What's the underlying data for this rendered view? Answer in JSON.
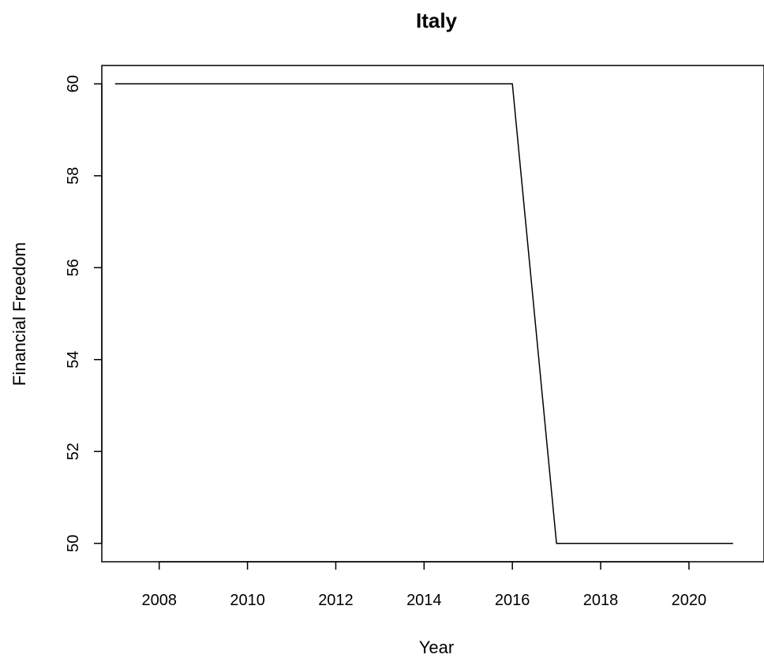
{
  "chart_data": {
    "type": "line",
    "title": "Italy",
    "xlabel": "Year",
    "ylabel": "Financial Freedom",
    "x": [
      2007,
      2008,
      2009,
      2010,
      2011,
      2012,
      2013,
      2014,
      2015,
      2016,
      2017,
      2018,
      2019,
      2020,
      2021
    ],
    "series": [
      {
        "values": [
          60,
          60,
          60,
          60,
          60,
          60,
          60,
          60,
          60,
          60,
          50,
          50,
          50,
          50,
          50
        ],
        "color": "#000000"
      }
    ],
    "xlim": [
      2006.7,
      2021.7
    ],
    "ylim": [
      49.6,
      60.4
    ],
    "xticks": [
      2008,
      2010,
      2012,
      2014,
      2016,
      2018,
      2020
    ],
    "yticks": [
      50,
      52,
      54,
      56,
      58,
      60
    ],
    "grid": false,
    "legend": "none"
  }
}
